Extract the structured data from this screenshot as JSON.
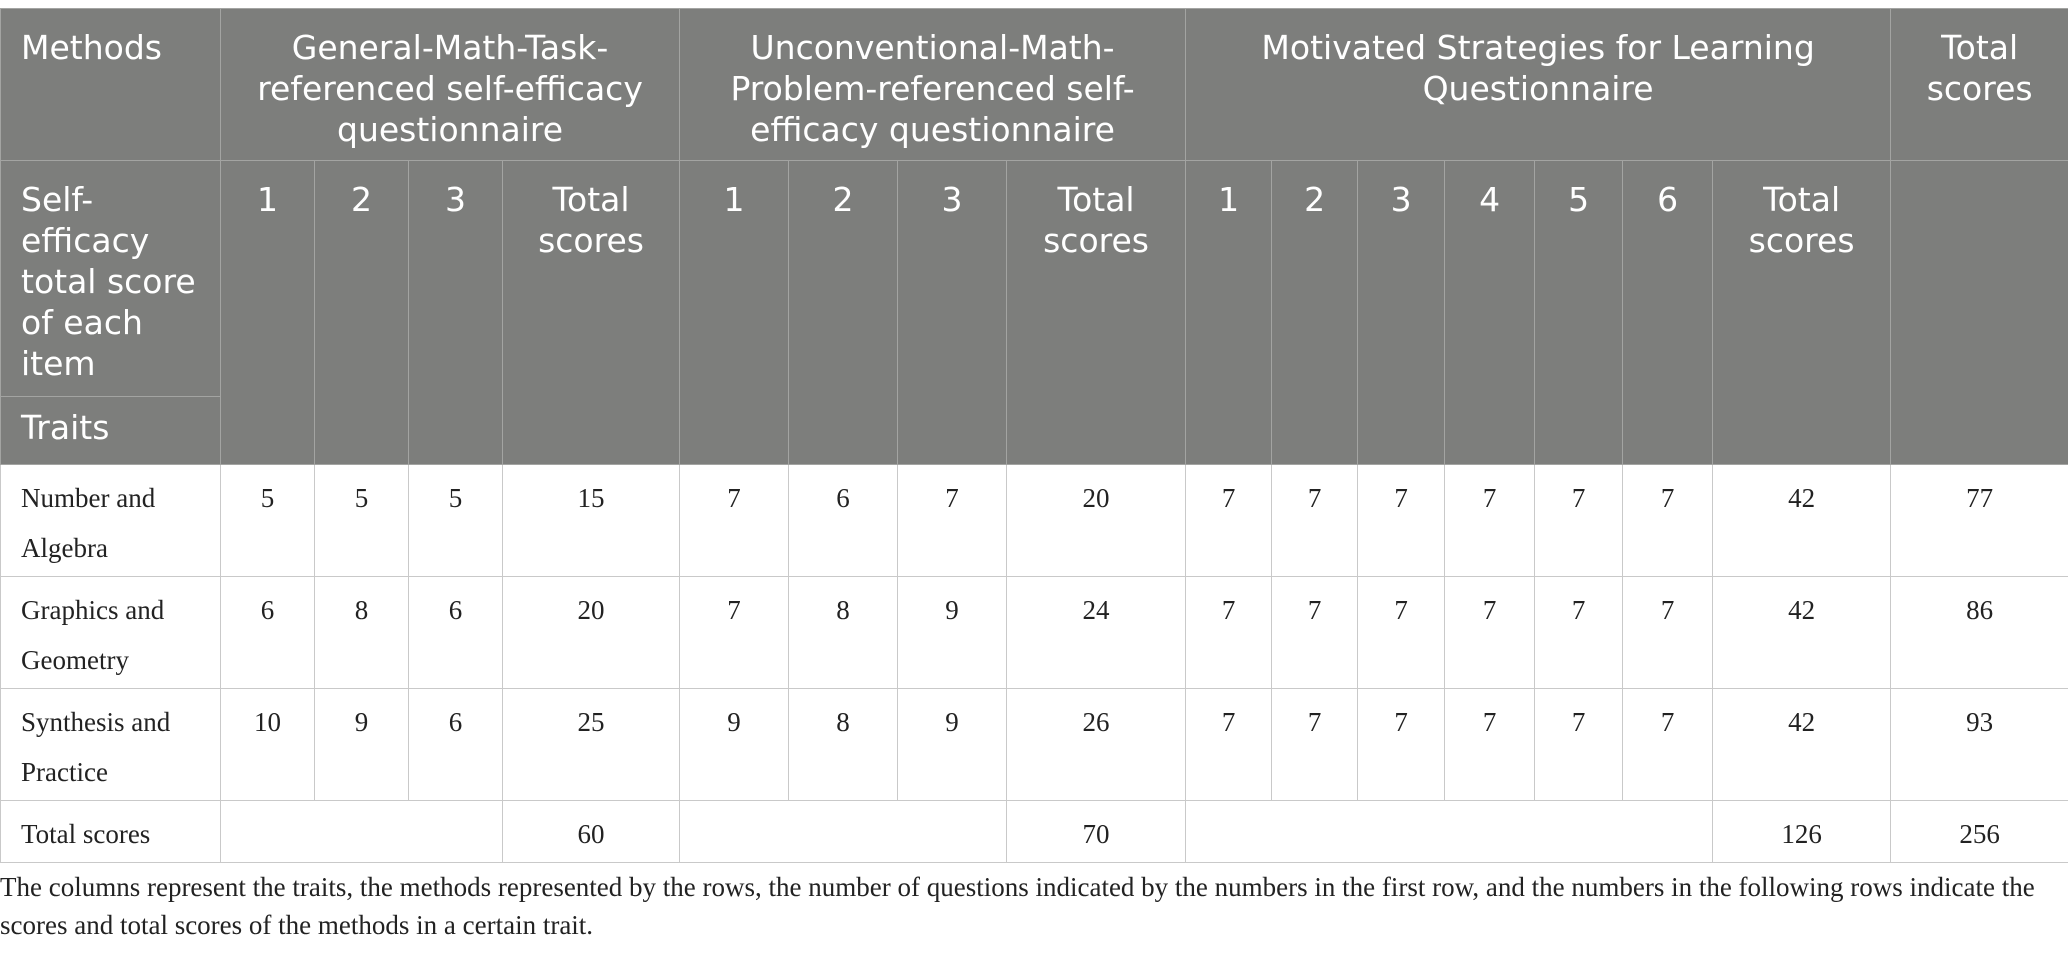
{
  "header": {
    "methods": "Methods",
    "general": "General-Math-Task-referenced self-efficacy questionnaire",
    "unconventional": "Unconventional-Math-Problem-referenced self-efficacy questionnaire",
    "motivated": "Motivated Strategies for Learning Questionnaire",
    "total": "Total scores",
    "row_label": "Self-efficacy total score of each item",
    "traits": "Traits",
    "general_items": [
      "1",
      "2",
      "3",
      "Total scores"
    ],
    "unconventional_items": [
      "1",
      "2",
      "3",
      "Total scores"
    ],
    "motivated_items": [
      "1",
      "2",
      "3",
      "4",
      "5",
      "6",
      "Total scores"
    ]
  },
  "rows": [
    {
      "trait": "Number and Algebra",
      "values": [
        "5",
        "5",
        "5",
        "15",
        "7",
        "6",
        "7",
        "20",
        "7",
        "7",
        "7",
        "7",
        "7",
        "7",
        "42",
        "77"
      ]
    },
    {
      "trait": "Graphics and Geometry",
      "values": [
        "6",
        "8",
        "6",
        "20",
        "7",
        "8",
        "9",
        "24",
        "7",
        "7",
        "7",
        "7",
        "7",
        "7",
        "42",
        "86"
      ]
    },
    {
      "trait": "Synthesis and Practice",
      "values": [
        "10",
        "9",
        "6",
        "25",
        "9",
        "8",
        "9",
        "26",
        "7",
        "7",
        "7",
        "7",
        "7",
        "7",
        "42",
        "93"
      ]
    }
  ],
  "totals": {
    "label": "Total scores",
    "general": "60",
    "unconventional": "70",
    "motivated": "126",
    "overall": "256"
  },
  "note": "The columns represent the traits, the methods represented by the rows, the number of questions indicated by the numbers in the first row, and the numbers in the following rows indicate the scores and total scores of the methods in a certain trait."
}
